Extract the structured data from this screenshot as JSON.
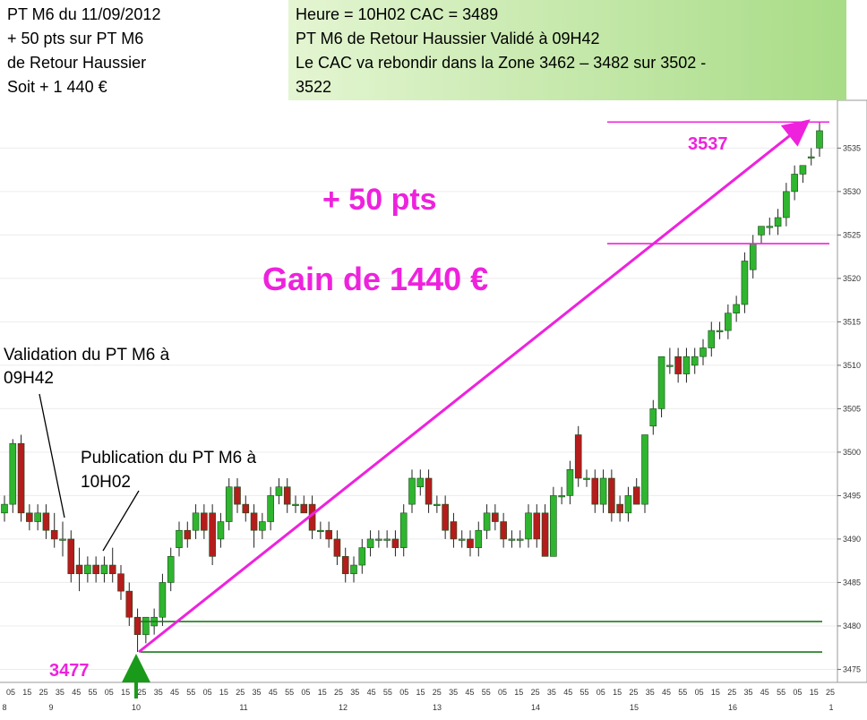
{
  "header": {
    "left": [
      "PT M6 du 11/09/2012",
      "+ 50 pts sur PT M6",
      "de  Retour Haussier",
      "Soit + 1 440 €"
    ],
    "right": [
      "Heure = 10H02  CAC = 3489",
      "PT M6 de Retour Haussier Validé à 09H42",
      "Le CAC va rebondir dans la Zone 3462 – 3482 sur 3502 -",
      "3522"
    ]
  },
  "chart_data": {
    "type": "candlestick",
    "open": [
      3493,
      3494,
      3501,
      3493,
      3492,
      3493,
      3491,
      3490,
      3490,
      3487,
      3486,
      3487,
      3486,
      3487,
      3486,
      3484,
      3481,
      3479,
      3480,
      3481,
      3485,
      3489,
      3491,
      3491,
      3493,
      3493,
      3490,
      3492,
      3496,
      3494,
      3493,
      3491,
      3492,
      3495,
      3496,
      3494,
      3494,
      3494,
      3491,
      3491,
      3490,
      3488,
      3486,
      3487,
      3489,
      3490,
      3490,
      3490,
      3489,
      3494,
      3496,
      3497,
      3494,
      3494,
      3492,
      3490,
      3490,
      3489,
      3491,
      3493,
      3492,
      3490,
      3490,
      3490,
      3493,
      3493,
      3488,
      3495,
      3495,
      3502,
      3497,
      3497,
      3494,
      3497,
      3494,
      3493,
      3496,
      3494,
      3503,
      3505,
      3510,
      3511,
      3509,
      3510,
      3511,
      3512,
      3514,
      3514,
      3516,
      3517,
      3521,
      3525,
      3526,
      3526,
      3527,
      3530,
      3532,
      3534,
      3535
    ],
    "high": [
      3495,
      3501.5,
      3502,
      3494,
      3494,
      3494,
      3493,
      3492,
      3491,
      3489,
      3488,
      3488,
      3488,
      3489,
      3487,
      3485,
      3482,
      3481,
      3482,
      3486,
      3489,
      3492,
      3492,
      3494,
      3494,
      3494,
      3493,
      3497,
      3497,
      3495,
      3494,
      3493,
      3496,
      3497,
      3497,
      3495,
      3495,
      3495,
      3492,
      3492,
      3491,
      3489,
      3488,
      3490,
      3491,
      3491,
      3491,
      3491,
      3494,
      3498,
      3498,
      3498,
      3495,
      3495,
      3493,
      3491,
      3491,
      3492,
      3494,
      3494,
      3493,
      3491,
      3491,
      3494,
      3494,
      3494,
      3496,
      3496,
      3499,
      3503,
      3498,
      3498,
      3498,
      3498,
      3495,
      3496,
      3497,
      3502,
      3506,
      3511,
      3512,
      3512,
      3512,
      3512,
      3513,
      3515,
      3515,
      3517,
      3518,
      3523,
      3525,
      3526,
      3527,
      3528,
      3531,
      3533,
      3533,
      3535,
      3538
    ],
    "low": [
      3492,
      3493,
      3492,
      3491,
      3491,
      3490,
      3489,
      3488,
      3485,
      3484,
      3485,
      3485,
      3485,
      3485,
      3483,
      3480,
      3477,
      3478,
      3479,
      3480,
      3484,
      3488,
      3489,
      3490,
      3490,
      3487,
      3489,
      3491,
      3493,
      3492,
      3489,
      3490,
      3491,
      3494,
      3493,
      3493,
      3493,
      3490,
      3490,
      3489,
      3487,
      3485,
      3485,
      3486,
      3488,
      3489,
      3489,
      3488,
      3488,
      3493,
      3495,
      3493,
      3493,
      3490,
      3489,
      3489,
      3488,
      3488,
      3490,
      3491,
      3489,
      3489,
      3489,
      3489,
      3489,
      3488,
      3488,
      3494,
      3494,
      3496,
      3496,
      3493,
      3493,
      3492,
      3492,
      3492,
      3494,
      3493,
      3502,
      3504,
      3509,
      3508,
      3508,
      3509,
      3510,
      3511,
      3513,
      3513,
      3515,
      3516,
      3520,
      3524,
      3525,
      3525,
      3526,
      3529,
      3531,
      3533,
      3534
    ],
    "close": [
      3494,
      3501,
      3493,
      3492,
      3493,
      3491,
      3490,
      3490,
      3486,
      3486,
      3487,
      3486,
      3487,
      3486,
      3484,
      3481,
      3479,
      3481,
      3481,
      3485,
      3488,
      3491,
      3490,
      3493,
      3491,
      3488,
      3492,
      3496,
      3494,
      3493,
      3491,
      3492,
      3495,
      3496,
      3494,
      3494,
      3493,
      3491,
      3491,
      3490,
      3488,
      3486,
      3487,
      3489,
      3490,
      3490,
      3490,
      3489,
      3493,
      3497,
      3497,
      3494,
      3494,
      3491,
      3490,
      3490,
      3489,
      3491,
      3493,
      3492,
      3490,
      3490,
      3490,
      3493,
      3490,
      3488,
      3495,
      3495,
      3498,
      3497,
      3497,
      3494,
      3497,
      3493,
      3493,
      3495,
      3494,
      3502,
      3505,
      3511,
      3510,
      3509,
      3511,
      3511,
      3512,
      3514,
      3514,
      3516,
      3517,
      3522,
      3524,
      3526,
      3526,
      3527,
      3530,
      3532,
      3533,
      3534,
      3537
    ],
    "up_color": "#2fb52f",
    "down_color": "#b51c1c",
    "ylim": [
      3473.5,
      3540.5
    ],
    "yticks": [
      3475,
      3480,
      3485,
      3490,
      3495,
      3500,
      3505,
      3510,
      3515,
      3520,
      3525,
      3530,
      3535
    ],
    "x_tick_labels": [
      "05",
      "15",
      "25",
      "35",
      "45",
      "55",
      "05",
      "15",
      "25",
      "35",
      "45",
      "55",
      "05",
      "15",
      "25",
      "35",
      "45",
      "55",
      "05",
      "15",
      "25",
      "35",
      "45",
      "55",
      "05",
      "15",
      "25",
      "35",
      "45",
      "55",
      "05",
      "15",
      "25",
      "35",
      "45",
      "55",
      "05",
      "15",
      "25",
      "35",
      "45",
      "55",
      "05",
      "15",
      "25",
      "35",
      "45",
      "55",
      "05",
      "15",
      "25"
    ],
    "x_hour_labels": [
      "8",
      "9",
      "10",
      "11",
      "12",
      "13",
      "14",
      "15",
      "16",
      "1"
    ],
    "levels": [
      {
        "value": 3538,
        "color": "#ee22dd"
      },
      {
        "value": 3524,
        "color": "#ee22dd"
      },
      {
        "value": 3480.5,
        "color": "#1a7a1a"
      },
      {
        "value": 3477,
        "color": "#1a7a1a"
      }
    ],
    "annotations": {
      "gain_pts": "+ 50 pts",
      "gain_eur": "Gain de 1440 €",
      "top_price": "3537",
      "bottom_price": "3477",
      "validation": [
        "Validation du PT M6 à",
        "09H42"
      ],
      "publication": [
        "Publication du PT M6 à",
        "10H02"
      ]
    }
  }
}
